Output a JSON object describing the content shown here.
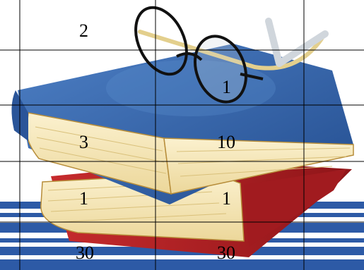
{
  "colors": {
    "background": "#ffffff",
    "book_cover_blue": "#2f5fa3",
    "book_cover_blue_light": "#4a7bc0",
    "book_cover_red": "#b01f24",
    "page_cream": "#f6e7b5",
    "stripe_blue": "#2d5aa6",
    "glasses_frame": "#111111",
    "glasses_arm_tan": "#e3cf8d",
    "grid_line": "#000000",
    "number_text": "#000000"
  },
  "illustration": {
    "subject": [
      "book-stack",
      "eyeglasses",
      "blue-stripes"
    ]
  },
  "grid_numbers": {
    "r1c1": "2",
    "r2c2": "1",
    "r3c1": "3",
    "r3c2": "10",
    "r4c1": "1",
    "r4c2": "1",
    "r5c1": "30",
    "r5c2": "30"
  }
}
